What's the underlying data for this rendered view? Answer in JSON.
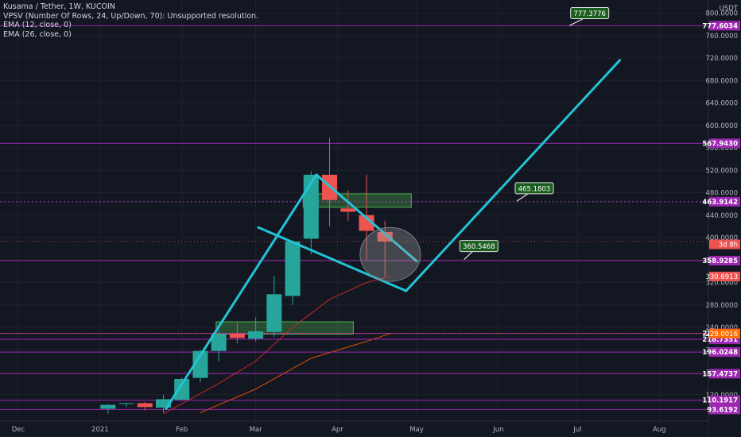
{
  "legend": {
    "title": "Kusama / Tether, 1W, KUCOIN",
    "vpsv": "VPSV (Number Of Rows, 24, Up/Down, 70): Unsupported resolution.",
    "ema12": "EMA (12, close, 0)",
    "ema26": "EMA (26, close, 0)"
  },
  "currency": "USDT",
  "colors": {
    "background": "#131722",
    "bull": "#26a69a",
    "bear": "#ef5350",
    "level_line": "#9c27b0",
    "pattern_line": "#22c3d6",
    "ema": "#b71c1c",
    "zone": "#2e7d32",
    "callout": "#1b5e20"
  },
  "chart_data": {
    "type": "candlestick",
    "ylim": [
      86,
      836
    ],
    "xlim": [
      "2020-11-30",
      "2021-08-06"
    ],
    "y_ticks": [
      "120.0000",
      "160.0000",
      "200.0000",
      "240.0000",
      "280.0000",
      "320.0000",
      "360.0000",
      "400.0000",
      "440.0000",
      "480.0000",
      "520.0000",
      "560.0000",
      "600.0000",
      "640.0000",
      "680.0000",
      "720.0000",
      "760.0000",
      "800.0000"
    ],
    "x_ticks": [
      {
        "label": "Dec",
        "date": "2020-12-01"
      },
      {
        "label": "2021",
        "date": "2021-01-01"
      },
      {
        "label": "Feb",
        "date": "2021-02-01"
      },
      {
        "label": "Mar",
        "date": "2021-03-01"
      },
      {
        "label": "Apr",
        "date": "2021-04-01"
      },
      {
        "label": "May",
        "date": "2021-05-01"
      },
      {
        "label": "Jun",
        "date": "2021-06-01"
      },
      {
        "label": "Jul",
        "date": "2021-07-01"
      },
      {
        "label": "Aug",
        "date": "2021-08-01"
      }
    ],
    "candles": [
      {
        "date": "2021-01-04",
        "open": 95,
        "high": 103,
        "low": 86,
        "close": 102
      },
      {
        "date": "2021-01-11",
        "open": 104,
        "high": 106,
        "low": 98,
        "close": 105
      },
      {
        "date": "2021-01-18",
        "open": 105,
        "high": 107,
        "low": 92,
        "close": 98
      },
      {
        "date": "2021-01-25",
        "open": 97,
        "high": 120,
        "low": 88,
        "close": 112
      },
      {
        "date": "2021-02-01",
        "open": 111,
        "high": 150,
        "low": 110,
        "close": 148
      },
      {
        "date": "2021-02-08",
        "open": 150,
        "high": 200,
        "low": 142,
        "close": 198
      },
      {
        "date": "2021-02-15",
        "open": 198,
        "high": 234,
        "low": 180,
        "close": 228
      },
      {
        "date": "2021-02-22",
        "open": 229,
        "high": 248,
        "low": 212,
        "close": 221
      },
      {
        "date": "2021-03-01",
        "open": 220,
        "high": 258,
        "low": 215,
        "close": 233
      },
      {
        "date": "2021-03-08",
        "open": 232,
        "high": 332,
        "low": 223,
        "close": 299
      },
      {
        "date": "2021-03-15",
        "open": 296,
        "high": 395,
        "low": 280,
        "close": 393
      },
      {
        "date": "2021-03-22",
        "open": 398,
        "high": 518,
        "low": 370,
        "close": 512
      },
      {
        "date": "2021-03-29",
        "open": 512,
        "high": 578,
        "low": 420,
        "close": 467
      },
      {
        "date": "2021-04-05",
        "open": 452,
        "high": 485,
        "low": 430,
        "close": 446
      },
      {
        "date": "2021-04-12",
        "open": 440,
        "high": 512,
        "low": 360,
        "close": 412
      },
      {
        "date": "2021-04-19",
        "open": 410,
        "high": 430,
        "low": 331,
        "close": 393
      }
    ],
    "ema12": [
      {
        "date": "2021-01-25",
        "value": 86
      },
      {
        "date": "2021-02-15",
        "value": 140
      },
      {
        "date": "2021-03-01",
        "value": 180
      },
      {
        "date": "2021-03-15",
        "value": 240
      },
      {
        "date": "2021-03-29",
        "value": 290
      },
      {
        "date": "2021-04-12",
        "value": 320
      },
      {
        "date": "2021-04-21",
        "value": 331
      }
    ],
    "ema26": [
      {
        "date": "2021-02-08",
        "value": 88
      },
      {
        "date": "2021-03-01",
        "value": 130
      },
      {
        "date": "2021-03-22",
        "value": 185
      },
      {
        "date": "2021-04-12",
        "value": 215
      },
      {
        "date": "2021-04-21",
        "value": 229
      }
    ],
    "horizontal_levels": [
      {
        "value": 777.6034,
        "label": "777.6034",
        "style": "solid"
      },
      {
        "value": 567.943,
        "label": "567.9430",
        "style": "solid"
      },
      {
        "value": 463.9142,
        "label": "463.9142",
        "style": "dotted"
      },
      {
        "value": 358.9285,
        "label": "358.9285",
        "style": "solid"
      },
      {
        "value": 229.3584,
        "label": "229.3584",
        "style": "solid"
      },
      {
        "value": 218.7351,
        "label": "218.7351",
        "style": "solid"
      },
      {
        "value": 196.0248,
        "label": "196.0248",
        "style": "solid"
      },
      {
        "value": 157.4737,
        "label": "157.4737",
        "style": "solid"
      },
      {
        "value": 110.1917,
        "label": "110.1917",
        "style": "solid"
      },
      {
        "value": 93.6192,
        "label": "93.6192",
        "style": "solid"
      }
    ],
    "price_labels": [
      {
        "value": 388,
        "label": "3d 8h",
        "color": "#ef5350"
      },
      {
        "value": 330.6913,
        "label": "330.6913",
        "color": "#ef5350"
      },
      {
        "value": 229.0016,
        "label": "229.0016",
        "color": "#ff6d00"
      }
    ],
    "pattern_lines": [
      [
        {
          "date": "2021-01-26",
          "value": 95
        },
        {
          "date": "2021-03-24",
          "value": 512
        }
      ],
      [
        {
          "date": "2021-03-24",
          "value": 512
        },
        {
          "date": "2021-05-01",
          "value": 358
        }
      ],
      [
        {
          "date": "2021-03-02",
          "value": 418
        },
        {
          "date": "2021-04-27",
          "value": 305
        }
      ],
      [
        {
          "date": "2021-04-27",
          "value": 305
        },
        {
          "date": "2021-07-17",
          "value": 716
        }
      ]
    ],
    "zones": [
      {
        "from": "2021-02-14",
        "to": "2021-04-07",
        "low": 228,
        "high": 250
      },
      {
        "from": "2021-03-19",
        "to": "2021-04-29",
        "low": 454,
        "high": 478
      }
    ],
    "ellipse": {
      "date": "2021-04-21",
      "value": 370,
      "rx_days": 5,
      "ry_value": 48
    },
    "callouts": [
      {
        "label": "777.3776",
        "date": "2021-07-05",
        "value": 800,
        "anchor_date": "2021-06-28",
        "anchor_value": 778
      },
      {
        "label": "465.1803",
        "date": "2021-06-14",
        "value": 488,
        "anchor_date": "2021-06-08",
        "anchor_value": 465
      },
      {
        "label": "360.5468",
        "date": "2021-05-24",
        "value": 385,
        "anchor_date": "2021-05-19",
        "anchor_value": 361
      }
    ]
  }
}
